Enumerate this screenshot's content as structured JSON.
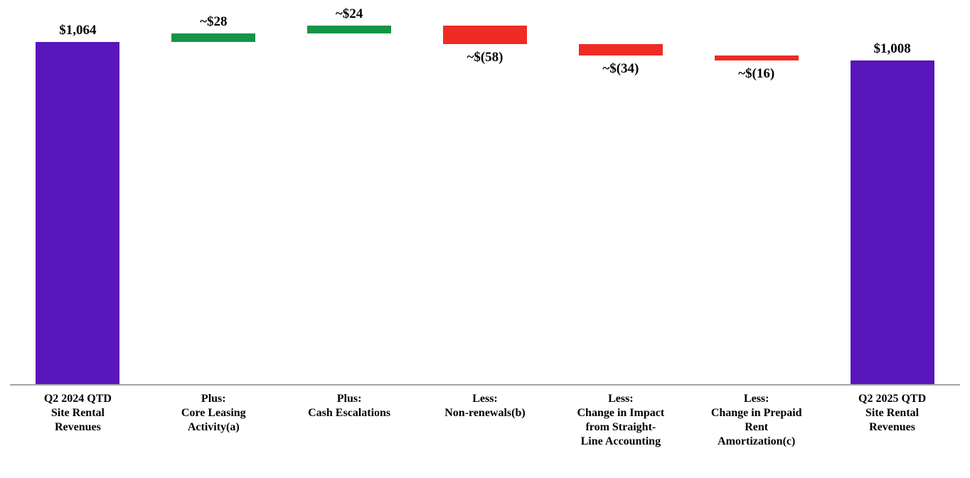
{
  "chart_data": {
    "type": "waterfall",
    "title": "",
    "categories": [
      "Q2 2024 QTD\nSite Rental\nRevenues",
      "Plus:\nCore Leasing\nActivity(a)",
      "Plus:\nCash Escalations",
      "Less:\nNon-renewals(b)",
      "Less:\nChange in Impact\nfrom Straight-\nLine Accounting",
      "Less:\nChange in Prepaid\nRent\nAmortization(c)",
      "Q2 2025 QTD\nSite Rental\nRevenues"
    ],
    "bars": [
      {
        "label": "$1,064",
        "value": 1064,
        "kind": "total",
        "label_position": "above"
      },
      {
        "label": "~$28",
        "value": 28,
        "kind": "increase",
        "label_position": "above"
      },
      {
        "label": "~$24",
        "value": 24,
        "kind": "increase",
        "label_position": "above"
      },
      {
        "label": "~$(58)",
        "value": -58,
        "kind": "decrease",
        "label_position": "below"
      },
      {
        "label": "~$(34)",
        "value": -34,
        "kind": "decrease",
        "label_position": "below"
      },
      {
        "label": "~$(16)",
        "value": -16,
        "kind": "decrease",
        "label_position": "below"
      },
      {
        "label": "$1,008",
        "value": 1008,
        "kind": "total",
        "label_position": "above"
      }
    ],
    "start_total": 1064,
    "end_total": 1008,
    "running_totals": [
      1064,
      1092,
      1116,
      1058,
      1024,
      1008
    ],
    "ylim": [
      0,
      1116
    ],
    "grid": false,
    "legend": false,
    "colors": {
      "total": "#5916BB",
      "increase": "#169448",
      "decrease": "#EE2B24",
      "axis_line": "#A6A6A6",
      "label_text": "#000000"
    }
  }
}
